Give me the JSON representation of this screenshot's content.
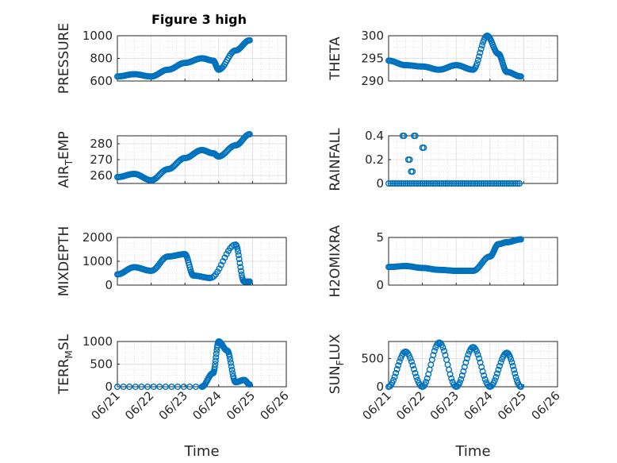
{
  "figure_title": "Figure 3 high",
  "colors": {
    "marker": "#0072BD",
    "axis": "#262626",
    "grid": "#cfcfcf"
  },
  "chart_data": [
    {
      "type": "scatter",
      "ylabel": "PRESSURE",
      "title": "Figure 3 high",
      "ylim": [
        600,
        1000
      ],
      "yticks": [
        600,
        800,
        1000
      ],
      "x": [
        "06/21 00",
        "06/21 12",
        "06/22 00",
        "06/22 12",
        "06/23 00",
        "06/23 12",
        "06/23 20",
        "06/24 00",
        "06/24 12",
        "06/24 22"
      ],
      "y": [
        640,
        660,
        640,
        700,
        760,
        800,
        780,
        700,
        870,
        960
      ]
    },
    {
      "type": "scatter",
      "ylabel": "THETA",
      "ylim": [
        290,
        300
      ],
      "yticks": [
        290,
        295,
        300
      ],
      "x": [
        "06/21 00",
        "06/21 12",
        "06/22 00",
        "06/22 12",
        "06/23 00",
        "06/23 12",
        "06/23 22",
        "06/24 06",
        "06/24 12",
        "06/24 22"
      ],
      "y": [
        294.5,
        293.5,
        293.2,
        292.5,
        293.5,
        292.5,
        300.0,
        296.0,
        292.0,
        291.0
      ]
    },
    {
      "type": "scatter",
      "ylabel": "AIR_TEMP",
      "ylabel_main": "AIR",
      "ylabel_sub": "T",
      "ylabel_rest": "EMP",
      "ylim": [
        255,
        285
      ],
      "yticks": [
        260,
        270,
        280
      ],
      "x": [
        "06/21 00",
        "06/21 12",
        "06/22 00",
        "06/22 12",
        "06/23 00",
        "06/23 12",
        "06/23 20",
        "06/24 00",
        "06/24 12",
        "06/24 22"
      ],
      "y": [
        259,
        261,
        257,
        264,
        271,
        276,
        274,
        272,
        279,
        286
      ]
    },
    {
      "type": "scatter",
      "ylabel": "RAINFALL",
      "ylim": [
        0,
        0.4
      ],
      "yticks": [
        0,
        0.2,
        0.4
      ],
      "x": [
        "06/21 00",
        "06/21 10",
        "06/21 14",
        "06/21 16",
        "06/21 18",
        "06/22 00",
        "06/24 22"
      ],
      "y": [
        0,
        0.4,
        0.2,
        0.1,
        0.4,
        0.3,
        0
      ]
    },
    {
      "type": "scatter",
      "ylabel": "MIXDEPTH",
      "ylim": [
        0,
        2000
      ],
      "yticks": [
        0,
        1000,
        2000
      ],
      "x": [
        "06/21 00",
        "06/21 12",
        "06/22 00",
        "06/22 12",
        "06/23 00",
        "06/23 06",
        "06/23 18",
        "06/24 12",
        "06/24 18",
        "06/24 22"
      ],
      "y": [
        450,
        750,
        600,
        1200,
        1300,
        400,
        300,
        1700,
        150,
        150
      ]
    },
    {
      "type": "scatter",
      "ylabel": "H2OMIXRA",
      "ylim": [
        0,
        5
      ],
      "yticks": [
        0,
        5
      ],
      "x": [
        "06/21 00",
        "06/21 12",
        "06/22 00",
        "06/22 12",
        "06/23 00",
        "06/23 12",
        "06/24 00",
        "06/24 06",
        "06/24 12",
        "06/24 22"
      ],
      "y": [
        1.9,
        2.0,
        1.8,
        1.6,
        1.5,
        1.5,
        3.0,
        4.3,
        4.5,
        4.8
      ]
    },
    {
      "type": "scatter",
      "ylabel": "TERR_MSL",
      "ylabel_main": "TERR",
      "ylabel_sub": "M",
      "ylabel_rest": "SL",
      "ylim": [
        0,
        1000
      ],
      "yticks": [
        0,
        500,
        1000
      ],
      "xticks": [
        "06/21",
        "06/22",
        "06/23",
        "06/24",
        "06/25",
        "06/26"
      ],
      "xlabel": "Time",
      "x": [
        "06/21 00",
        "06/23 12",
        "06/23 20",
        "06/24 00",
        "06/24 06",
        "06/24 12",
        "06/24 18",
        "06/24 22"
      ],
      "y": [
        0,
        0,
        300,
        1000,
        800,
        100,
        150,
        50
      ]
    },
    {
      "type": "scatter",
      "ylabel": "SUN_FLUX",
      "ylabel_main": "SUN",
      "ylabel_sub": "F",
      "ylabel_rest": "LUX",
      "ylim": [
        0,
        800
      ],
      "yticks": [
        0,
        500
      ],
      "xticks": [
        "06/21",
        "06/22",
        "06/23",
        "06/24",
        "06/25",
        "06/26"
      ],
      "xlabel": "Time",
      "x": [
        "06/21 00",
        "06/21 12",
        "06/22 00",
        "06/22 12",
        "06/23 00",
        "06/23 12",
        "06/24 00",
        "06/24 12",
        "06/24 22"
      ],
      "y": [
        0,
        620,
        0,
        780,
        0,
        700,
        0,
        600,
        0
      ]
    }
  ]
}
